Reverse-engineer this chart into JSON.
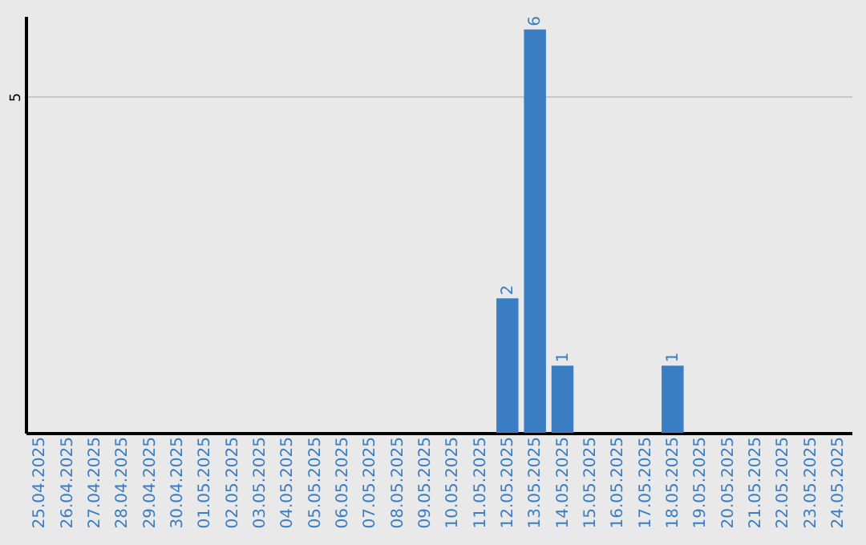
{
  "chart_data": {
    "type": "bar",
    "categories": [
      "25.04.2025",
      "26.04.2025",
      "27.04.2025",
      "28.04.2025",
      "29.04.2025",
      "30.04.2025",
      "01.05.2025",
      "02.05.2025",
      "03.05.2025",
      "04.05.2025",
      "05.05.2025",
      "06.05.2025",
      "07.05.2025",
      "08.05.2025",
      "09.05.2025",
      "10.05.2025",
      "11.05.2025",
      "12.05.2025",
      "13.05.2025",
      "14.05.2025",
      "15.05.2025",
      "16.05.2025",
      "17.05.2025",
      "18.05.2025",
      "19.05.2025",
      "20.05.2025",
      "21.05.2025",
      "22.05.2025",
      "23.05.2025",
      "24.05.2025"
    ],
    "values": [
      null,
      null,
      null,
      null,
      null,
      null,
      null,
      null,
      null,
      null,
      null,
      null,
      null,
      null,
      null,
      null,
      null,
      2,
      6,
      1,
      null,
      null,
      null,
      1,
      null,
      null,
      null,
      null,
      null,
      null
    ],
    "value_labels": [
      null,
      null,
      null,
      null,
      null,
      null,
      null,
      null,
      null,
      null,
      null,
      null,
      null,
      null,
      null,
      null,
      null,
      "2",
      "6",
      "1",
      null,
      null,
      null,
      "1",
      null,
      null,
      null,
      null,
      null,
      null
    ],
    "color": "#3a7dc2",
    "ylim": [
      0,
      6.2
    ],
    "yticks": [
      5
    ],
    "grid": "y"
  }
}
